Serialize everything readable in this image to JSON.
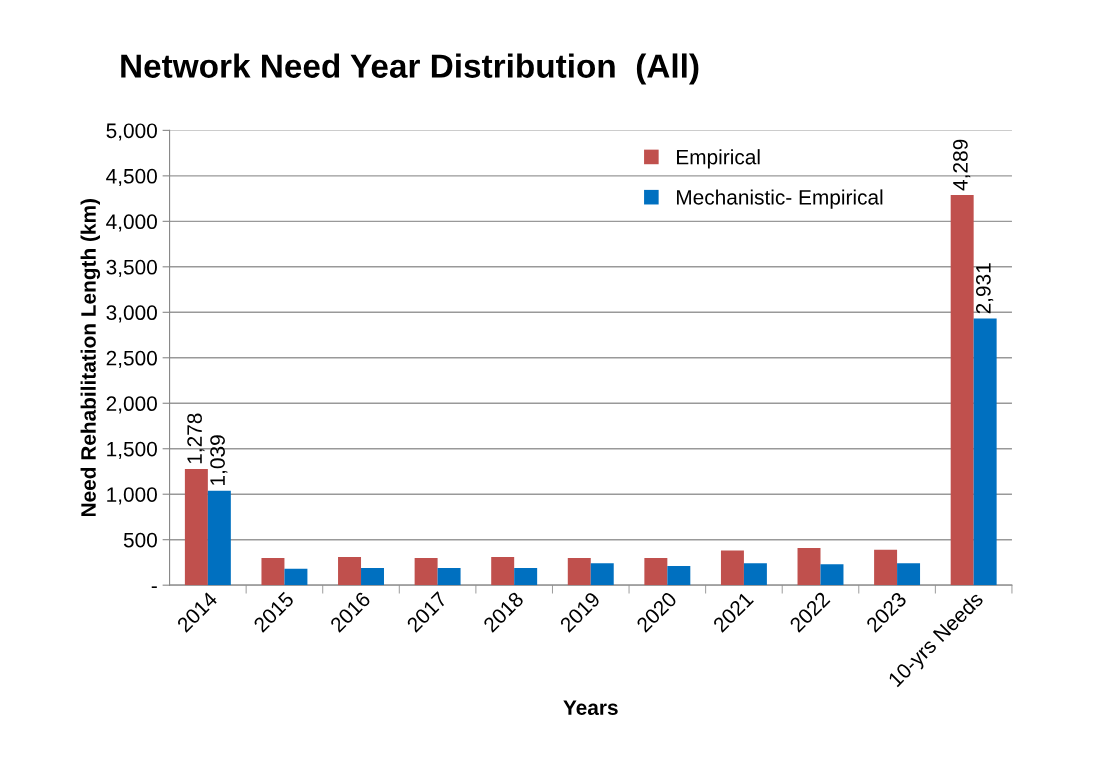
{
  "chart_data": {
    "type": "bar",
    "title": "Network Need Year Distribution  (All)",
    "xlabel": "Years",
    "ylabel": "Need Rehabilitation Length (km)",
    "categories": [
      "2014",
      "2015",
      "2016",
      "2017",
      "2018",
      "2019",
      "2020",
      "2021",
      "2022",
      "2023",
      "10-yrs Needs"
    ],
    "series": [
      {
        "name": "Empirical",
        "color": "#c0504d",
        "values": [
          1278,
          300,
          310,
          300,
          310,
          300,
          300,
          380,
          410,
          390,
          4289
        ],
        "value_labels": [
          "1,278",
          null,
          null,
          null,
          null,
          null,
          null,
          null,
          null,
          null,
          "4,289"
        ]
      },
      {
        "name": "Mechanistic- Empirical",
        "color": "#0070c0",
        "values": [
          1039,
          180,
          190,
          190,
          190,
          240,
          210,
          240,
          230,
          240,
          2931
        ],
        "value_labels": [
          "1,039",
          null,
          null,
          null,
          null,
          null,
          null,
          null,
          null,
          null,
          "2,931"
        ]
      }
    ],
    "ylim": [
      0,
      5000
    ],
    "yticks": [
      {
        "value": 0,
        "label": "-"
      },
      {
        "value": 500,
        "label": "500"
      },
      {
        "value": 1000,
        "label": "1,000"
      },
      {
        "value": 1500,
        "label": "1,500"
      },
      {
        "value": 2000,
        "label": "2,000"
      },
      {
        "value": 2500,
        "label": "2,500"
      },
      {
        "value": 3000,
        "label": "3,000"
      },
      {
        "value": 3500,
        "label": "3,500"
      },
      {
        "value": 4000,
        "label": "4,000"
      },
      {
        "value": 4500,
        "label": "4,500"
      },
      {
        "value": 5000,
        "label": "5,000"
      }
    ],
    "grid": "y",
    "legend": "top right"
  }
}
